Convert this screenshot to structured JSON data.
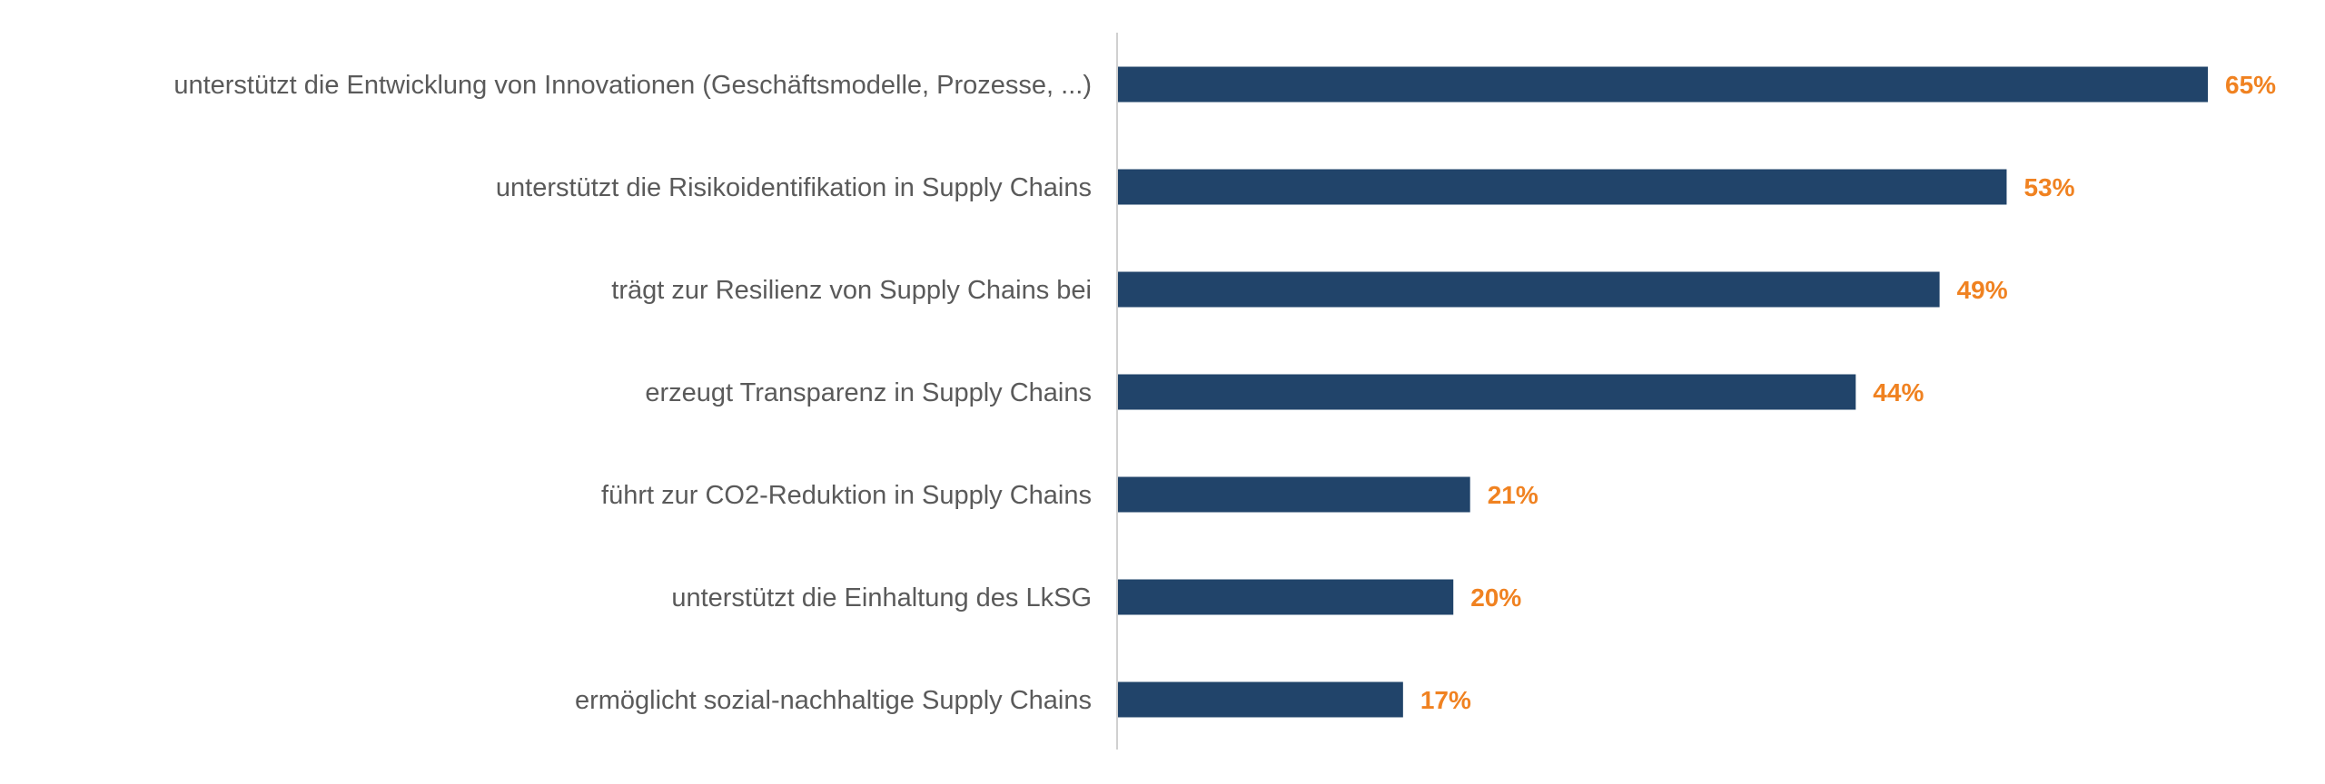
{
  "chart_data": {
    "type": "bar",
    "orientation": "horizontal",
    "title": "",
    "xlabel": "",
    "ylabel": "",
    "categories": [
      "unterstützt die Entwicklung von Innovationen (Geschäftsmodelle, Prozesse, ...)",
      "unterstützt die Risikoidentifikation in Supply Chains",
      "trägt zur Resilienz von Supply Chains bei",
      "erzeugt Transparenz in Supply Chains",
      "führt zur CO2-Reduktion in Supply Chains",
      "unterstützt die Einhaltung des LkSG",
      "ermöglicht sozial-nachhaltige Supply Chains"
    ],
    "values": [
      65,
      53,
      49,
      44,
      21,
      20,
      17
    ],
    "value_labels": [
      "65%",
      "53%",
      "49%",
      "44%",
      "21%",
      "20%",
      "17%"
    ],
    "xlim": [
      0,
      65
    ],
    "grid": false,
    "colors": {
      "bar": "#21446a",
      "value_label": "#f08221",
      "axis": "#d0d0d0"
    }
  }
}
